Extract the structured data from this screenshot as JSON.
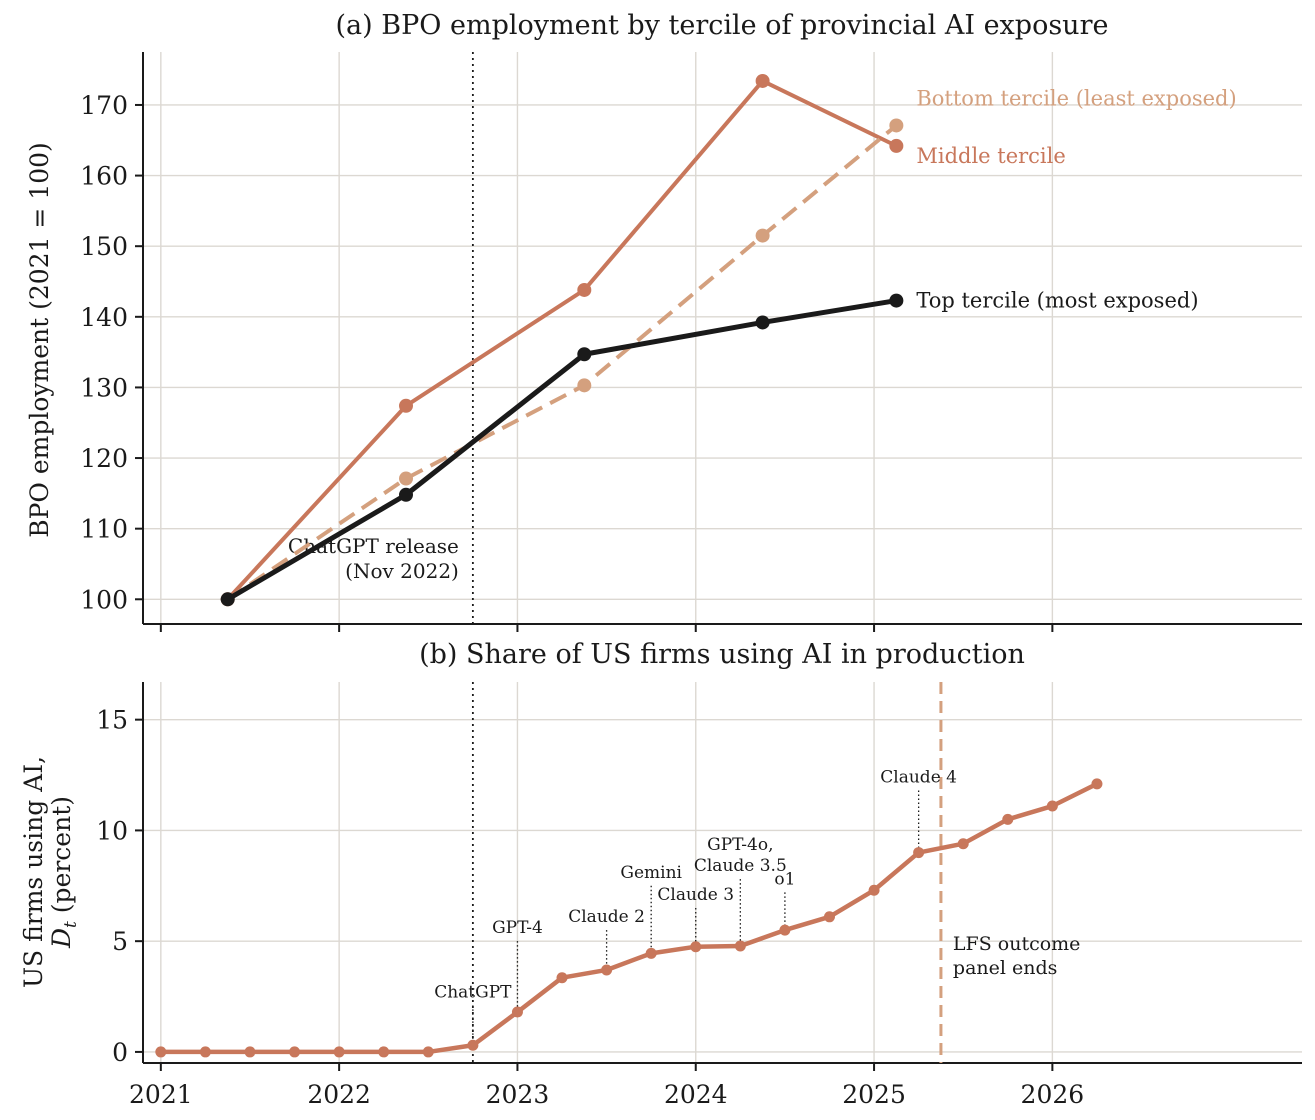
{
  "colors": {
    "top": "#1a1a1a",
    "middle": "#c8775b",
    "bottom": "#d4a07e",
    "grid": "#dcd8d2",
    "axis": "#1a1a1a"
  },
  "chart_data": [
    {
      "type": "line",
      "title": "(a) BPO employment by tercile of provincial AI exposure",
      "ylabel": "BPO employment (2021 = 100)",
      "xlim": [
        2020.9,
        2027.4
      ],
      "ylim": [
        96.5,
        177.5
      ],
      "yticks": [
        100,
        110,
        120,
        130,
        140,
        150,
        160,
        170
      ],
      "xticks": [
        2021,
        2022,
        2023,
        2024,
        2025,
        2026
      ],
      "x": [
        2021.375,
        2022.375,
        2023.375,
        2024.375,
        2025.125
      ],
      "series": [
        {
          "key": "middle",
          "name": "Middle tercile",
          "style": "solid",
          "values": [
            100,
            127.4,
            143.8,
            173.4,
            164.2
          ]
        },
        {
          "key": "bottom",
          "name": "Bottom tercile (least exposed)",
          "style": "dashed",
          "values": [
            100,
            117.1,
            130.3,
            151.5,
            167.1
          ]
        },
        {
          "key": "top",
          "name": "Top tercile (most exposed)",
          "style": "solid",
          "values": [
            100,
            114.8,
            134.7,
            139.2,
            142.3
          ]
        }
      ],
      "vline": {
        "x": 2022.75,
        "label": [
          "ChatGPT release",
          "(Nov 2022)"
        ]
      },
      "grid": true,
      "legend": "direct labels at line ends"
    },
    {
      "type": "line",
      "title": "(b) Share of US firms using AI in production",
      "ylabel": [
        "US firms using AI,",
        "(percent)"
      ],
      "ylabel_symbol": "D",
      "ylabel_subscript": "t",
      "xlim": [
        2020.9,
        2027.4
      ],
      "ylim": [
        -0.5,
        16.7
      ],
      "yticks": [
        0,
        5,
        10,
        15
      ],
      "xticks": [
        2021,
        2022,
        2023,
        2024,
        2025,
        2026
      ],
      "x": [
        2021,
        2021.25,
        2021.5,
        2021.75,
        2022,
        2022.25,
        2022.5,
        2022.75,
        2023,
        2023.25,
        2023.5,
        2023.75,
        2024,
        2024.25,
        2024.5,
        2024.75,
        2025,
        2025.25,
        2025.5,
        2025.75,
        2026,
        2026.25
      ],
      "values": [
        0,
        0,
        0,
        0,
        0,
        0,
        0,
        0.3,
        1.8,
        3.35,
        3.7,
        4.45,
        4.75,
        4.78,
        5.5,
        6.1,
        7.3,
        9.0,
        9.4,
        10.5,
        11.1,
        12.1
      ],
      "vline_dotted": {
        "x": 2022.75
      },
      "vline_dashed": {
        "x": 2025.375,
        "label": [
          "LFS outcome",
          "panel ends"
        ]
      },
      "annotations": [
        {
          "x": 2022.75,
          "label": [
            "ChatGPT"
          ],
          "y": 2.1
        },
        {
          "x": 2023,
          "label": [
            "GPT-4"
          ],
          "y": 5.0
        },
        {
          "x": 2023.5,
          "label": [
            "Claude 2"
          ],
          "y": 5.5
        },
        {
          "x": 2023.75,
          "label": [
            "Gemini"
          ],
          "y": 7.5
        },
        {
          "x": 2024,
          "label": [
            "Claude 3"
          ],
          "y": 6.5
        },
        {
          "x": 2024.25,
          "label": [
            "GPT-4o,",
            "Claude 3.5"
          ],
          "y": 7.8
        },
        {
          "x": 2024.5,
          "label": [
            "o1"
          ],
          "y": 7.2
        },
        {
          "x": 2025.25,
          "label": [
            "Claude 4"
          ],
          "y": 11.8
        }
      ],
      "grid": true
    }
  ]
}
